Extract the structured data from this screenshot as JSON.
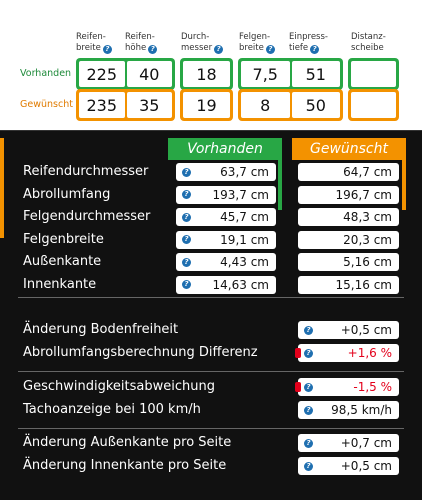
{
  "headers": [
    {
      "line1": "Reifen-",
      "line2": "breite"
    },
    {
      "line1": "Reifen-",
      "line2": "höhe"
    },
    {
      "line1": "Durch-",
      "line2": "messer"
    },
    {
      "line1": "Felgen-",
      "line2": "breite"
    },
    {
      "line1": "Einpress-",
      "line2": "tiefe"
    },
    {
      "line1": "Distanz-",
      "line2": "scheibe"
    }
  ],
  "rows": {
    "vorhanden": {
      "label": "Vorhanden",
      "values": [
        "225",
        "40",
        "18",
        "7,5",
        "51",
        ""
      ]
    },
    "gewuenscht": {
      "label": "Gewünscht",
      "values": [
        "235",
        "35",
        "19",
        "8",
        "50",
        ""
      ]
    }
  },
  "results": {
    "col_vorhanden": "Vorhanden",
    "col_gewuenscht": "Gewünscht",
    "rows": [
      {
        "label": "Reifendurchmesser",
        "vorhanden": "63,7 cm",
        "gewuenscht": "64,7 cm"
      },
      {
        "label": "Abrollumfang",
        "vorhanden": "193,7 cm",
        "gewuenscht": "196,7 cm"
      },
      {
        "label": "Felgendurchmesser",
        "vorhanden": "45,7 cm",
        "gewuenscht": "48,3 cm"
      },
      {
        "label": "Felgenbreite",
        "vorhanden": "19,1 cm",
        "gewuenscht": "20,3 cm"
      },
      {
        "label": "Außenkante",
        "vorhanden": "4,43 cm",
        "gewuenscht": "5,16 cm"
      },
      {
        "label": "Innenkante",
        "vorhanden": "14,63 cm",
        "gewuenscht": "15,16 cm"
      }
    ]
  },
  "changes": [
    {
      "label": "Änderung Bodenfreiheit",
      "value": "+0,5 cm",
      "status": "normal"
    },
    {
      "label": "Abrollumfangsberechnung Differenz",
      "value": "+1,6 %",
      "status": "warning"
    },
    {
      "label": "Geschwindigkeitsabweichung",
      "value": "-1,5 %",
      "status": "warning"
    },
    {
      "label": "Tachoanzeige bei 100 km/h",
      "value": "98,5 km/h",
      "status": "normal"
    },
    {
      "label": "Änderung Außenkante pro Seite",
      "value": "+0,7 cm",
      "status": "normal"
    },
    {
      "label": "Änderung Innenkante pro Seite",
      "value": "+0,5 cm",
      "status": "normal"
    }
  ],
  "colors": {
    "green": "#28a745",
    "orange": "#f39200",
    "red": "#e3001b",
    "info": "#1f6fb0"
  },
  "icons": {
    "info": "question-mark-circle-icon"
  }
}
